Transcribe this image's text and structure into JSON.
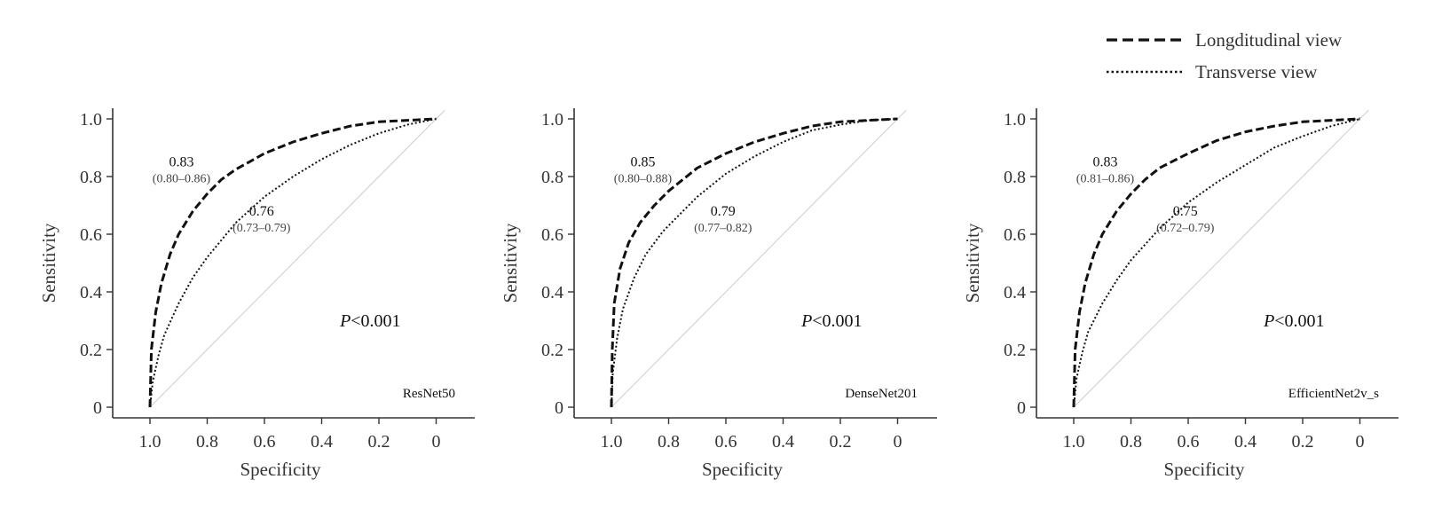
{
  "legend": {
    "items": [
      {
        "label": "Longditudinal view",
        "style": "dashed"
      },
      {
        "label": "Transverse view",
        "style": "dotted"
      }
    ]
  },
  "colors": {
    "curve": "#111111",
    "axis": "#333333",
    "diagonal": "#cccccc",
    "text": "#333333"
  },
  "chart_data": [
    {
      "type": "line",
      "model": "ResNet50",
      "xlabel": "Specificity",
      "ylabel": "Sensitivity",
      "x_reversed": true,
      "xlim": [
        1.15,
        -0.15
      ],
      "ylim": [
        -0.04,
        1.03
      ],
      "xticks": [
        1.0,
        0.8,
        0.6,
        0.4,
        0.2,
        0
      ],
      "xtick_labels": [
        "1.0",
        "0.8",
        "0.6",
        "0.4",
        "0.2",
        "0"
      ],
      "yticks": [
        0,
        0.2,
        0.4,
        0.6,
        0.8,
        1.0
      ],
      "ytick_labels": [
        "0",
        "0.2",
        "0.4",
        "0.6",
        "0.8",
        "1.0"
      ],
      "p_value": "<0.001",
      "series": [
        {
          "name": "Longditudinal view",
          "style": "dashed",
          "auc": "0.83",
          "ci": "(0.80–0.86)",
          "x": [
            1.0,
            0.995,
            0.98,
            0.96,
            0.93,
            0.9,
            0.85,
            0.8,
            0.75,
            0.7,
            0.6,
            0.5,
            0.4,
            0.3,
            0.2,
            0.1,
            0.0
          ],
          "y": [
            0.0,
            0.2,
            0.33,
            0.43,
            0.53,
            0.6,
            0.68,
            0.74,
            0.79,
            0.825,
            0.88,
            0.92,
            0.95,
            0.975,
            0.99,
            0.995,
            1.0
          ]
        },
        {
          "name": "Transverse view",
          "style": "dotted",
          "auc": "0.76",
          "ci": "(0.73–0.79)",
          "x": [
            1.0,
            0.99,
            0.97,
            0.95,
            0.9,
            0.85,
            0.8,
            0.7,
            0.6,
            0.5,
            0.4,
            0.3,
            0.2,
            0.1,
            0.0
          ],
          "y": [
            0.0,
            0.09,
            0.18,
            0.25,
            0.36,
            0.45,
            0.52,
            0.64,
            0.73,
            0.8,
            0.86,
            0.91,
            0.95,
            0.98,
            1.0
          ]
        }
      ]
    },
    {
      "type": "line",
      "model": "DenseNet201",
      "xlabel": "Specificity",
      "ylabel": "Sensitivity",
      "x_reversed": true,
      "xlim": [
        1.15,
        -0.15
      ],
      "ylim": [
        -0.04,
        1.03
      ],
      "xticks": [
        1.0,
        0.8,
        0.6,
        0.4,
        0.2,
        0
      ],
      "xtick_labels": [
        "1.0",
        "0.8",
        "0.6",
        "0.4",
        "0.2",
        "0"
      ],
      "yticks": [
        0,
        0.2,
        0.4,
        0.6,
        0.8,
        1.0
      ],
      "ytick_labels": [
        "0",
        "0.2",
        "0.4",
        "0.6",
        "0.8",
        "1.0"
      ],
      "p_value": "<0.001",
      "series": [
        {
          "name": "Longditudinal view",
          "style": "dashed",
          "auc": "0.85",
          "ci": "(0.80–0.88)",
          "x": [
            1.0,
            0.997,
            0.99,
            0.97,
            0.94,
            0.9,
            0.85,
            0.8,
            0.75,
            0.7,
            0.6,
            0.5,
            0.4,
            0.3,
            0.2,
            0.1,
            0.0
          ],
          "y": [
            0.0,
            0.2,
            0.36,
            0.48,
            0.57,
            0.64,
            0.7,
            0.75,
            0.79,
            0.83,
            0.88,
            0.92,
            0.95,
            0.975,
            0.99,
            0.995,
            1.0
          ]
        },
        {
          "name": "Transverse view",
          "style": "dotted",
          "auc": "0.79",
          "ci": "(0.77–0.82)",
          "x": [
            1.0,
            0.995,
            0.98,
            0.96,
            0.92,
            0.88,
            0.82,
            0.75,
            0.7,
            0.6,
            0.5,
            0.4,
            0.3,
            0.2,
            0.1,
            0.0
          ],
          "y": [
            0.0,
            0.12,
            0.24,
            0.34,
            0.45,
            0.53,
            0.61,
            0.68,
            0.73,
            0.81,
            0.87,
            0.92,
            0.96,
            0.98,
            0.995,
            1.0
          ]
        }
      ]
    },
    {
      "type": "line",
      "model": "EfficientNet2v_s",
      "xlabel": "Specificity",
      "ylabel": "Sensitivity",
      "x_reversed": true,
      "xlim": [
        1.15,
        -0.15
      ],
      "ylim": [
        -0.04,
        1.03
      ],
      "xticks": [
        1.0,
        0.8,
        0.6,
        0.4,
        0.2,
        0
      ],
      "xtick_labels": [
        "1.0",
        "0.8",
        "0.6",
        "0.4",
        "0.2",
        "0"
      ],
      "yticks": [
        0,
        0.2,
        0.4,
        0.6,
        0.8,
        1.0
      ],
      "ytick_labels": [
        "0",
        "0.2",
        "0.4",
        "0.6",
        "0.8",
        "1.0"
      ],
      "p_value": "<0.001",
      "series": [
        {
          "name": "Longditudinal view",
          "style": "dashed",
          "auc": "0.83",
          "ci": "(0.81–0.86)",
          "x": [
            1.0,
            0.995,
            0.98,
            0.96,
            0.93,
            0.9,
            0.85,
            0.8,
            0.75,
            0.7,
            0.6,
            0.5,
            0.4,
            0.3,
            0.2,
            0.1,
            0.0
          ],
          "y": [
            0.0,
            0.2,
            0.33,
            0.43,
            0.53,
            0.6,
            0.68,
            0.74,
            0.79,
            0.83,
            0.88,
            0.925,
            0.955,
            0.975,
            0.99,
            0.995,
            1.0
          ]
        },
        {
          "name": "Transverse view",
          "style": "dotted",
          "auc": "0.75",
          "ci": "(0.72–0.79)",
          "x": [
            1.0,
            0.99,
            0.97,
            0.95,
            0.9,
            0.85,
            0.8,
            0.7,
            0.6,
            0.5,
            0.4,
            0.3,
            0.2,
            0.1,
            0.0
          ],
          "y": [
            0.0,
            0.1,
            0.19,
            0.26,
            0.36,
            0.44,
            0.51,
            0.62,
            0.71,
            0.78,
            0.84,
            0.9,
            0.94,
            0.975,
            1.0
          ]
        }
      ]
    }
  ]
}
